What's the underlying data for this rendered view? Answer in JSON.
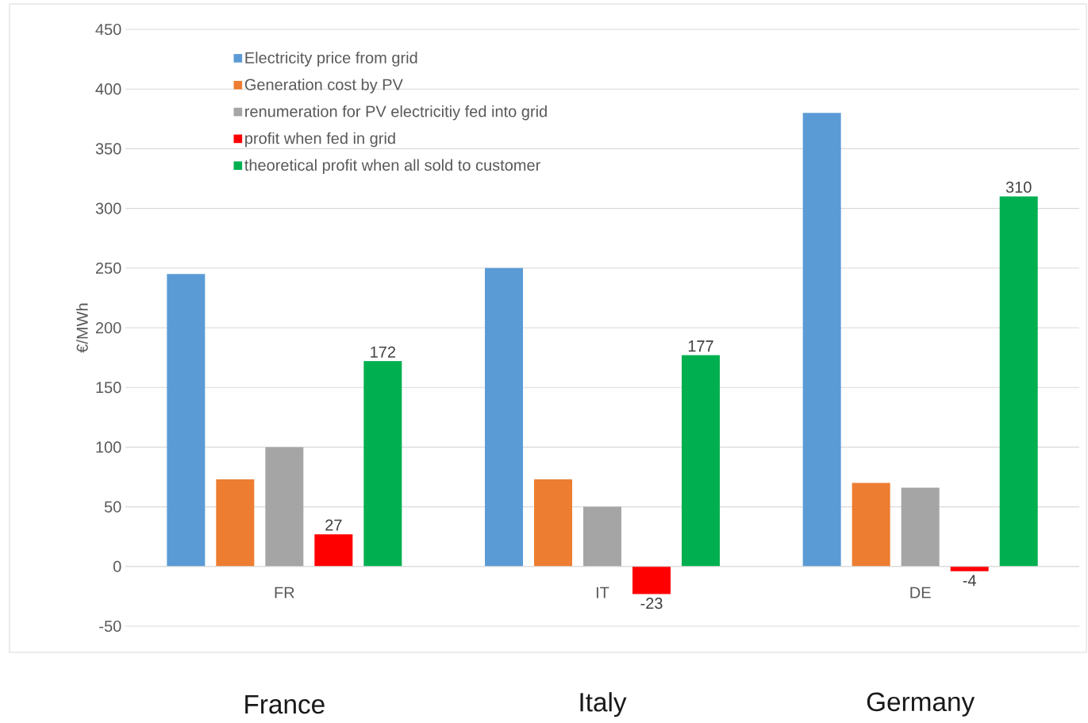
{
  "chart_data": {
    "type": "bar",
    "ylabel": "€/MWh",
    "categories": [
      "FR",
      "IT",
      "DE"
    ],
    "series": [
      {
        "name": "Electricity price from grid",
        "color": "#5b9bd5",
        "values": [
          245,
          250,
          380
        ]
      },
      {
        "name": "Generation cost by PV",
        "color": "#ed7d31",
        "values": [
          73,
          73,
          70
        ]
      },
      {
        "name": "renumeration for PV electricitiy fed into grid",
        "color": "#a5a5a5",
        "values": [
          100,
          50,
          66
        ]
      },
      {
        "name": "profit when fed in grid",
        "color": "#ff0000",
        "values": [
          27,
          -23,
          -4
        ],
        "value_labels": [
          "27",
          "-23",
          "-4"
        ]
      },
      {
        "name": "theoretical profit when all sold to customer",
        "color": "#00b050",
        "values": [
          172,
          177,
          310
        ],
        "value_labels": [
          "172",
          "177",
          "310"
        ]
      }
    ],
    "ylim": [
      -50,
      450
    ],
    "yticks": [
      -50,
      0,
      50,
      100,
      150,
      200,
      250,
      300,
      350,
      400,
      450
    ],
    "grid": "y",
    "legend": "top left",
    "annotations": [
      "France",
      "Italy",
      "Germany"
    ]
  }
}
